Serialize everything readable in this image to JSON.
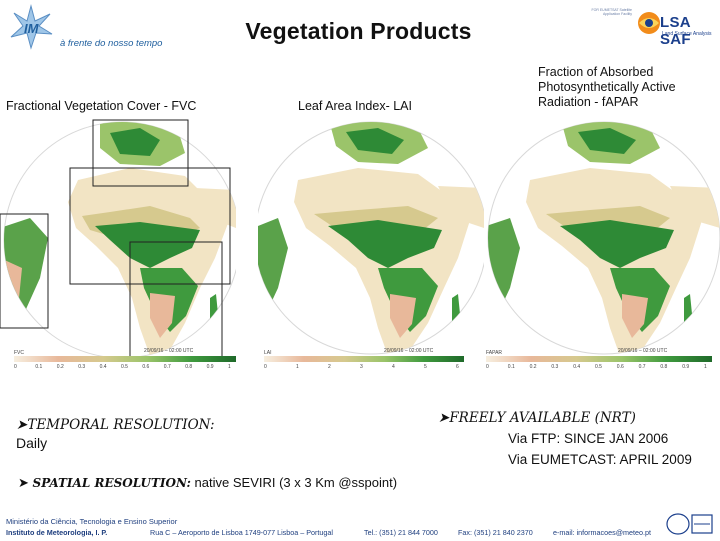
{
  "header": {
    "title": "Vegetation Products",
    "tagline": "à frente do nosso tempo",
    "left_logo": "IM",
    "right_logo": "LSA SAF",
    "right_logo_sub": "Land Surface Analysis",
    "right_small_text": "FOR EUMETSAT Satellite Application Facility"
  },
  "panels": [
    {
      "label": "Fractional Vegetation Cover - FVC",
      "scale_name": "FVC",
      "date": "20/09/16 – 02:00 UTC",
      "ticks": [
        "0",
        "0.1",
        "0.2",
        "0.3",
        "0.4",
        "0.5",
        "0.6",
        "0.7",
        "0.8",
        "0.9",
        "1"
      ]
    },
    {
      "label": "Leaf Area Index- LAI",
      "scale_name": "LAI",
      "date": "20/09/16 – 02:00 UTC",
      "ticks": [
        "0",
        "1",
        "2",
        "3",
        "4",
        "5",
        "6"
      ]
    },
    {
      "label": "Fraction of Absorbed Photosynthetically Active Radiation - fAPAR",
      "scale_name": "FAPAR",
      "date": "20/09/16 – 02:00 UTC",
      "ticks": [
        "0",
        "0.1",
        "0.2",
        "0.3",
        "0.4",
        "0.5",
        "0.6",
        "0.7",
        "0.8",
        "0.9",
        "1"
      ]
    }
  ],
  "colors": {
    "vegetation_dark": "#1f7a2a",
    "vegetation_light": "#9bc46a",
    "desert": "#f2e4c4",
    "bare": "#e8b89a",
    "ocean": "#ffffff",
    "title_blue": "#1b3f8c"
  },
  "info": {
    "temporal_label": "TEMPORAL RESOLUTION:",
    "temporal_value": "Daily",
    "freely_label": "FREELY AVAILABLE (NRT)",
    "via_ftp": "Via FTP: SINCE JAN 2006",
    "via_eumetcast": "Via EUMETCAST: APRIL 2009",
    "spatial_label": "SPATIAL RESOLUTION:",
    "spatial_value": "native SEVIRI (3 x 3 Km @sspoint)"
  },
  "footer": {
    "ministry": "Ministério da Ciência, Tecnologia e Ensino Superior",
    "institute": "Instituto de Meteorologia, I. P.",
    "address": "Rua C – Aeroporto de Lisboa 1749-077 Lisboa – Portugal",
    "tel": "Tel.: (351) 21 844 7000",
    "fax": "Fax: (351) 21 840 2370",
    "email": "e-mail: informacoes@meteo.pt"
  }
}
